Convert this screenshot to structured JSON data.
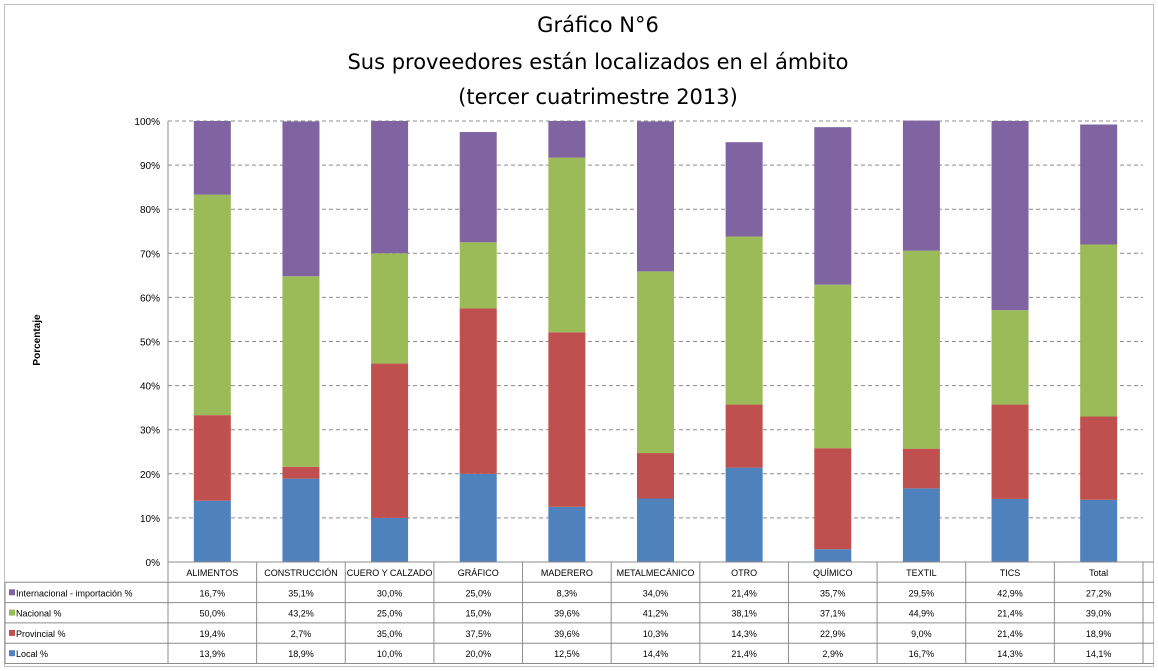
{
  "chart_data": {
    "type": "bar",
    "stacked": true,
    "title": [
      "Gráfico N°6",
      "Sus proveedores están localizados en el ámbito",
      "(tercer cuatrimestre 2013)"
    ],
    "ylabel": "Porcentaje",
    "xlabel": "",
    "ylim": [
      0,
      100
    ],
    "yticks": [
      "0%",
      "10%",
      "20%",
      "30%",
      "40%",
      "50%",
      "60%",
      "70%",
      "80%",
      "90%",
      "100%"
    ],
    "grid": true,
    "legend_placement": "table-left",
    "categories": [
      "ALIMENTOS",
      "CONSTRUCCIÓN",
      "CUERO Y CALZADO",
      "GRÁFICO",
      "MADERERO",
      "METALMECÁNICO",
      "OTRO",
      "QUÍMICO",
      "TEXTIL",
      "TICS",
      "Total"
    ],
    "series": [
      {
        "name": "Internacional - importación %",
        "color": "#8064a2",
        "labels": [
          "16,7%",
          "35,1%",
          "30,0%",
          "25,0%",
          "8,3%",
          "34,0%",
          "21,4%",
          "35,7%",
          "29,5%",
          "42,9%",
          "27,2%"
        ],
        "values": [
          16.7,
          35.1,
          30.0,
          25.0,
          8.3,
          34.0,
          21.4,
          35.7,
          29.5,
          42.9,
          27.2
        ]
      },
      {
        "name": "Nacional %",
        "color": "#9bbb59",
        "labels": [
          "50,0%",
          "43,2%",
          "25,0%",
          "15,0%",
          "39,6%",
          "41,2%",
          "38,1%",
          "37,1%",
          "44,9%",
          "21,4%",
          "39,0%"
        ],
        "values": [
          50.0,
          43.2,
          25.0,
          15.0,
          39.6,
          41.2,
          38.1,
          37.1,
          44.9,
          21.4,
          39.0
        ]
      },
      {
        "name": "Provincial %",
        "color": "#c0504d",
        "labels": [
          "19,4%",
          "2,7%",
          "35,0%",
          "37,5%",
          "39,6%",
          "10,3%",
          "14,3%",
          "22,9%",
          "9,0%",
          "21,4%",
          "18,9%"
        ],
        "values": [
          19.4,
          2.7,
          35.0,
          37.5,
          39.6,
          10.3,
          14.3,
          22.9,
          9.0,
          21.4,
          18.9
        ]
      },
      {
        "name": "Local %",
        "color": "#4f81bd",
        "labels": [
          "13,9%",
          "18,9%",
          "10,0%",
          "20,0%",
          "12,5%",
          "14,4%",
          "21,4%",
          "2,9%",
          "16,7%",
          "14,3%",
          "14,1%"
        ],
        "values": [
          13.9,
          18.9,
          10.0,
          20.0,
          12.5,
          14.4,
          21.4,
          2.9,
          16.7,
          14.3,
          14.1
        ]
      }
    ]
  }
}
